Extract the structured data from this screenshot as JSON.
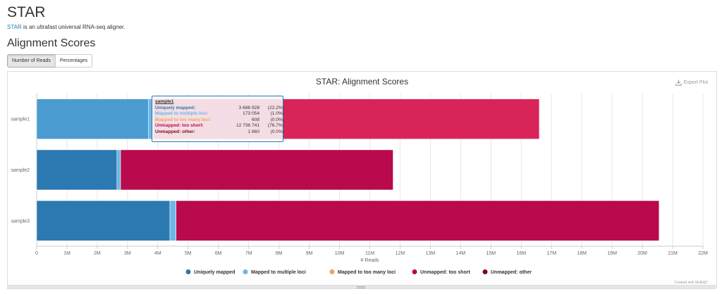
{
  "page": {
    "title": "STAR",
    "intro_link": "STAR",
    "intro_text": " is an ultrafast universal RNA-seq aligner.",
    "section_title": "Alignment Scores"
  },
  "toggle": {
    "number_label": "Number of Reads",
    "percent_label": "Percentages",
    "active": "Number of Reads"
  },
  "plot": {
    "export_label": "Export Plot",
    "export_icon": "download-icon",
    "credit": "Created with MultiQC"
  },
  "colors": {
    "uniquely_mapped": "#2b79b0",
    "mapped_multiple": "#6cb7e5",
    "mapped_too_many": "#f0a35c",
    "unmapped_too_short": "#b80a4c",
    "unmapped_other": "#790d13",
    "highlight_unique": "#4a9cd0",
    "highlight_too_short": "#d9245a"
  },
  "chart_data": {
    "type": "bar",
    "orientation": "horizontal",
    "stacked": true,
    "title": "STAR: Alignment Scores",
    "xlabel": "# Reads",
    "ylabel": "",
    "categories": [
      "sample1",
      "sample2",
      "sample3"
    ],
    "xlim": [
      0,
      22000000
    ],
    "xticks": [
      "0",
      "1M",
      "2M",
      "3M",
      "4M",
      "5M",
      "6M",
      "7M",
      "8M",
      "9M",
      "10M",
      "11M",
      "12M",
      "13M",
      "14M",
      "15M",
      "16M",
      "17M",
      "18M",
      "19M",
      "20M",
      "21M",
      "22M"
    ],
    "grid": true,
    "legend_position": "bottom",
    "highlighted_category": "sample1",
    "series": [
      {
        "name": "Uniquely mapped",
        "color": "#2b79b0",
        "values": [
          3686928,
          2650000,
          4400000
        ]
      },
      {
        "name": "Mapped to multiple loci",
        "color": "#6cb7e5",
        "values": [
          173054,
          120000,
          200000
        ]
      },
      {
        "name": "Mapped to too many loci",
        "color": "#f0a35c",
        "values": [
          608,
          1000,
          1500
        ]
      },
      {
        "name": "Unmapped: too short",
        "color": "#b80a4c",
        "values": [
          12736741,
          9000000,
          15950000
        ]
      },
      {
        "name": "Unmapped: other",
        "color": "#790d13",
        "values": [
          1660,
          2000,
          2500
        ]
      }
    ]
  },
  "tooltip": {
    "title": "sample1",
    "rows": [
      {
        "name": "Uniquely mapped:",
        "value": "3 686 928",
        "pct": "(22.2%)",
        "color": "#2b79b0"
      },
      {
        "name": "Mapped to multiple loci:",
        "value": "173 054",
        "pct": "(1.0%)",
        "color": "#6cb7e5"
      },
      {
        "name": "Mapped to too many loci:",
        "value": "608",
        "pct": "(0.0%)",
        "color": "#f0a35c"
      },
      {
        "name": "Unmapped: too short:",
        "value": "12 736 741",
        "pct": "(76.7%)",
        "color": "#b80a4c"
      },
      {
        "name": "Unmapped: other:",
        "value": "1 660",
        "pct": "(0.0%)",
        "color": "#790d13"
      }
    ]
  }
}
